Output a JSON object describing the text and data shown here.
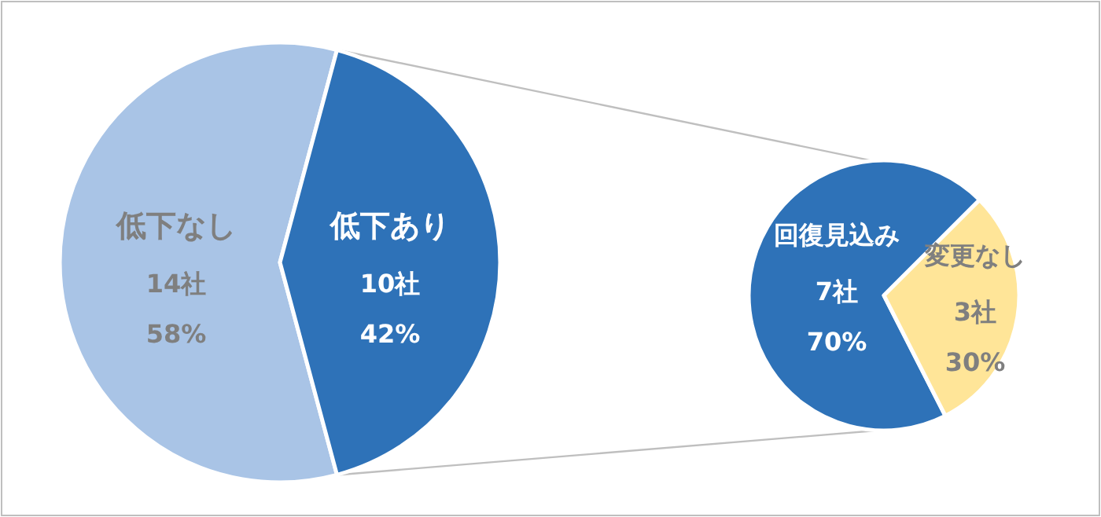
{
  "chart_data": [
    {
      "type": "pie",
      "categories": [
        "低下なし",
        "低下あり"
      ],
      "values": [
        14,
        10
      ],
      "colors": [
        "#a9c4e6",
        "#2e72b8"
      ],
      "value_labels": [
        "14社",
        "10社"
      ],
      "annotations": [
        "58%",
        "42%"
      ]
    },
    {
      "type": "pie",
      "categories": [
        "回復見込み",
        "変更なし"
      ],
      "values": [
        7,
        3
      ],
      "colors": [
        "#2e72b8",
        "#ffe598"
      ],
      "value_labels": [
        "7社",
        "3社"
      ],
      "annotations": [
        "70%",
        "30%"
      ]
    }
  ]
}
